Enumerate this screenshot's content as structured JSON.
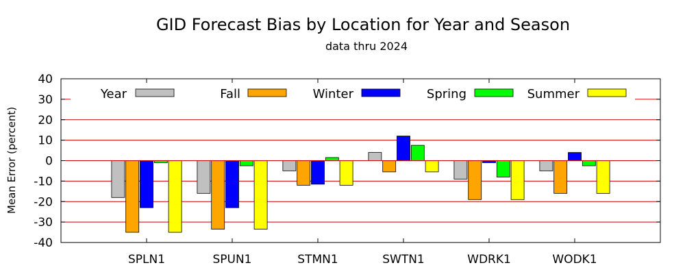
{
  "chart_data": {
    "type": "bar",
    "title": "GID Forecast Bias by Location for Year and Season",
    "subtitle": "data thru 2024",
    "xlabel": "",
    "ylabel": "Mean Error (percent)",
    "ylim": [
      -40,
      40
    ],
    "yticks": [
      40,
      30,
      20,
      10,
      0,
      -10,
      -20,
      -30,
      -40
    ],
    "grid": true,
    "legend_position": "top",
    "categories": [
      "SPLN1",
      "SPUN1",
      "STMN1",
      "SWTN1",
      "WDRK1",
      "WODK1"
    ],
    "series": [
      {
        "name": "Year",
        "color": "#c0c0c0",
        "values": [
          -18,
          -16,
          -5,
          4,
          -9,
          -5
        ]
      },
      {
        "name": "Fall",
        "color": "#ffa500",
        "values": [
          -35,
          -33.5,
          -12,
          -5.5,
          -19,
          -16
        ]
      },
      {
        "name": "Winter",
        "color": "#0000ff",
        "values": [
          -23,
          -23,
          -11.5,
          12,
          -1,
          4
        ]
      },
      {
        "name": "Spring",
        "color": "#00ff00",
        "values": [
          -1,
          -2.5,
          1.5,
          7.5,
          -8,
          -2.5
        ]
      },
      {
        "name": "Summer",
        "color": "#ffff00",
        "values": [
          -35,
          -33.5,
          -12,
          -5.5,
          -19,
          -16
        ]
      }
    ]
  }
}
